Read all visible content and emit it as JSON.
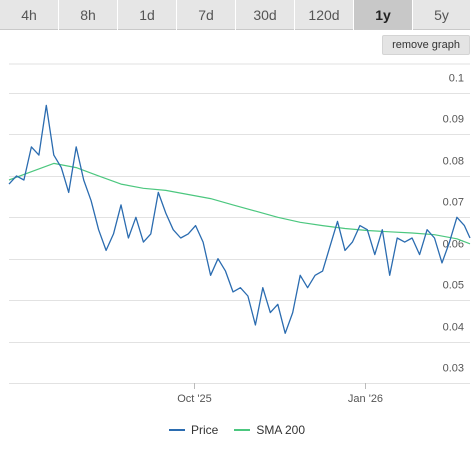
{
  "toolbar": {
    "tabs": [
      "4h",
      "8h",
      "1d",
      "7d",
      "30d",
      "120d",
      "1y",
      "5y"
    ],
    "active_tab": "1y",
    "remove_graph_label": "remove graph"
  },
  "colors": {
    "price": "#2b6cb0",
    "sma": "#4cc77f",
    "grid": "#e2e2e2",
    "axis_text": "#555555",
    "active_tab": "#c8c8c8",
    "inactive_tab": "#e6e6e6"
  },
  "legend": [
    {
      "label": "Price",
      "series": "price"
    },
    {
      "label": "SMA 200",
      "series": "sma"
    }
  ],
  "chart_data": {
    "type": "line",
    "title": "",
    "xlabel": "",
    "ylabel": "",
    "ylim": [
      0.03,
      0.107
    ],
    "yticks": [
      0.03,
      0.04,
      0.05,
      0.06,
      0.07,
      0.08,
      0.09,
      0.1
    ],
    "ytick_labels": [
      "0.03",
      "0.04",
      "0.05",
      "0.06",
      "0.07",
      "0.08",
      "0.09",
      "0.1"
    ],
    "xlim": [
      "2025-06-24",
      "2026-02-26"
    ],
    "xticks": [
      "2025-10-01",
      "2026-01-01"
    ],
    "xtick_labels": [
      "Oct '25",
      "Jan '26"
    ],
    "grid": true,
    "legend_position": "bottom",
    "series": [
      {
        "name": "Price",
        "key": "price",
        "x": [
          "2025-06-24",
          "2025-06-28",
          "2025-07-02",
          "2025-07-06",
          "2025-07-10",
          "2025-07-14",
          "2025-07-18",
          "2025-07-22",
          "2025-07-26",
          "2025-07-30",
          "2025-08-03",
          "2025-08-07",
          "2025-08-11",
          "2025-08-15",
          "2025-08-19",
          "2025-08-23",
          "2025-08-27",
          "2025-08-31",
          "2025-09-04",
          "2025-09-08",
          "2025-09-12",
          "2025-09-16",
          "2025-09-20",
          "2025-09-24",
          "2025-09-28",
          "2025-10-02",
          "2025-10-06",
          "2025-10-10",
          "2025-10-14",
          "2025-10-18",
          "2025-10-22",
          "2025-10-26",
          "2025-10-30",
          "2025-11-03",
          "2025-11-07",
          "2025-11-11",
          "2025-11-15",
          "2025-11-19",
          "2025-11-23",
          "2025-11-27",
          "2025-12-01",
          "2025-12-05",
          "2025-12-09",
          "2025-12-13",
          "2025-12-17",
          "2025-12-21",
          "2025-12-25",
          "2025-12-29",
          "2026-01-02",
          "2026-01-06",
          "2026-01-10",
          "2026-01-14",
          "2026-01-18",
          "2026-01-22",
          "2026-01-26",
          "2026-01-30",
          "2026-02-03",
          "2026-02-07",
          "2026-02-11",
          "2026-02-15",
          "2026-02-19",
          "2026-02-23",
          "2026-02-26"
        ],
        "values": [
          0.078,
          0.08,
          0.079,
          0.087,
          0.085,
          0.097,
          0.085,
          0.082,
          0.076,
          0.087,
          0.079,
          0.074,
          0.067,
          0.062,
          0.066,
          0.073,
          0.065,
          0.07,
          0.064,
          0.066,
          0.076,
          0.071,
          0.067,
          0.065,
          0.066,
          0.068,
          0.064,
          0.056,
          0.06,
          0.057,
          0.052,
          0.053,
          0.051,
          0.044,
          0.053,
          0.047,
          0.049,
          0.042,
          0.047,
          0.056,
          0.053,
          0.056,
          0.057,
          0.063,
          0.069,
          0.062,
          0.064,
          0.068,
          0.067,
          0.061,
          0.067,
          0.056,
          0.065,
          0.064,
          0.065,
          0.061,
          0.067,
          0.065,
          0.059,
          0.064,
          0.07,
          0.068,
          0.065
        ]
      },
      {
        "name": "SMA 200",
        "key": "sma",
        "x": [
          "2025-06-24",
          "2025-07-06",
          "2025-07-18",
          "2025-07-30",
          "2025-08-11",
          "2025-08-23",
          "2025-09-04",
          "2025-09-16",
          "2025-09-28",
          "2025-10-10",
          "2025-10-22",
          "2025-11-03",
          "2025-11-15",
          "2025-11-27",
          "2025-12-09",
          "2025-12-21",
          "2026-01-02",
          "2026-01-14",
          "2026-01-26",
          "2026-02-07",
          "2026-02-19",
          "2026-02-26"
        ],
        "values": [
          0.079,
          0.081,
          0.083,
          0.082,
          0.08,
          0.078,
          0.077,
          0.0765,
          0.0755,
          0.0745,
          0.073,
          0.0715,
          0.07,
          0.0688,
          0.068,
          0.0673,
          0.0668,
          0.0665,
          0.0662,
          0.0658,
          0.0648,
          0.0636
        ]
      }
    ]
  }
}
